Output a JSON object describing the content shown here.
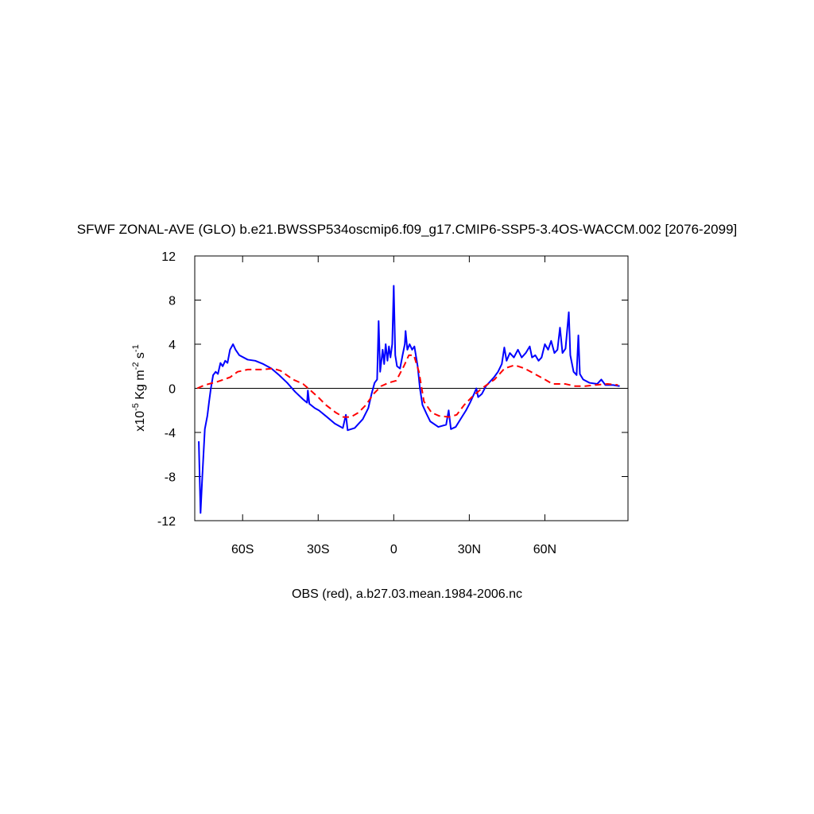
{
  "chart_data": {
    "type": "line",
    "title": "SFWF ZONAL-AVE (GLO) b.e21.BWSSP534oscmip6.f09_g17.CMIP6-SSP5-3.4OS-WACCM.002 [2076-2099]",
    "subtitle": "OBS (red), a.b27.03.mean.1984-2006.nc",
    "ylabel": [
      "x10",
      "-5",
      " Kg m",
      "-2",
      " s",
      "-1"
    ],
    "xlim": [
      -79,
      93
    ],
    "ylim": [
      -12,
      12
    ],
    "xticks": [
      {
        "value": -60,
        "label": "60S"
      },
      {
        "value": -30,
        "label": "30S"
      },
      0,
      {
        "value": 30,
        "label": "30N"
      },
      {
        "value": 60,
        "label": "60N"
      }
    ],
    "yticks": [
      12,
      8,
      4,
      0,
      -4,
      -8,
      -12
    ],
    "hline": 0,
    "series": [
      {
        "color": "#0000ff",
        "dash": false,
        "x": [
          -77.4,
          -76.7,
          -76,
          -75,
          -74,
          -73.3,
          -72.6,
          -71.7,
          -70.7,
          -69.8,
          -68.8,
          -67.9,
          -66.9,
          -66,
          -65,
          -63.8,
          -62.8,
          -61.3,
          -58,
          -55,
          -51.8,
          -48.6,
          -45.5,
          -42.3,
          -39.2,
          -36,
          -34.4,
          -34.1,
          -33.5,
          -31.3,
          -29.7,
          -26.5,
          -23.4,
          -20.2,
          -19,
          -18.3,
          -15.5,
          -12.3,
          -10.1,
          -8.8,
          -7.6,
          -6.6,
          -6,
          -5.4,
          -4.4,
          -3.8,
          -3.2,
          -2.5,
          -1.9,
          -1.3,
          -0.6,
          0,
          0.6,
          1.3,
          2.5,
          3.5,
          4.4,
          4.7,
          5.4,
          6.3,
          7.3,
          8.2,
          9.5,
          10.4,
          11.4,
          13,
          14.5,
          17.7,
          20.8,
          21.8,
          22.7,
          24.6,
          26.5,
          28.7,
          30.3,
          31.9,
          32.8,
          33.5,
          35,
          36.6,
          39.8,
          41.4,
          42.9,
          43.9,
          44.8,
          46.1,
          47.7,
          49.3,
          50.8,
          52.4,
          54,
          54.9,
          56.2,
          57.5,
          58.7,
          60,
          61.3,
          62.5,
          63.8,
          65,
          66,
          67,
          68.2,
          69.5,
          70.1,
          71.4,
          72.6,
          73.3,
          73.9,
          75.2,
          77.7,
          80.8,
          82.4,
          84,
          87.1,
          89.7
        ],
        "values": [
          -4.8,
          -11.3,
          -8,
          -3.7,
          -2.5,
          -1.2,
          0,
          1.2,
          1.5,
          1.3,
          2.3,
          2.0,
          2.5,
          2.3,
          3.5,
          4.0,
          3.5,
          3.0,
          2.6,
          2.5,
          2.2,
          1.8,
          1.2,
          0.5,
          -0.3,
          -1,
          -1.3,
          -0.2,
          -1.4,
          -1.8,
          -2.0,
          -2.6,
          -3.2,
          -3.6,
          -2.4,
          -3.8,
          -3.6,
          -2.8,
          -1.8,
          -0.5,
          0.5,
          0.8,
          6.1,
          1.5,
          3.5,
          2.2,
          4.0,
          2.5,
          3.8,
          2.8,
          4.0,
          9.3,
          3.0,
          2.0,
          1.8,
          3.0,
          4.0,
          5.2,
          3.5,
          4.0,
          3.5,
          3.8,
          2.0,
          0,
          -1.5,
          -2.3,
          -3.0,
          -3.5,
          -3.3,
          -2.0,
          -3.7,
          -3.5,
          -2.8,
          -2.0,
          -1.3,
          -0.5,
          0.0,
          -0.8,
          -0.5,
          0.2,
          1.0,
          1.5,
          2.2,
          3.7,
          2.5,
          3.2,
          2.8,
          3.5,
          2.8,
          3.2,
          3.8,
          2.8,
          3.0,
          2.5,
          2.8,
          4.0,
          3.5,
          4.3,
          3.2,
          3.5,
          5.5,
          3.2,
          3.6,
          6.9,
          3.0,
          1.5,
          1.2,
          4.8,
          1.3,
          0.8,
          0.5,
          0.4,
          0.8,
          0.3,
          0.3,
          0.2
        ]
      },
      {
        "color": "#ff0000",
        "dash": true,
        "x": [
          -78,
          -75,
          -70,
          -65,
          -62,
          -58,
          -52,
          -48,
          -45,
          -40,
          -36,
          -33,
          -30,
          -27,
          -23,
          -20,
          -17,
          -14,
          -11,
          -8,
          -5,
          -2,
          1,
          4,
          6,
          8,
          10,
          12,
          15,
          18,
          22,
          25,
          28,
          31,
          35,
          40,
          44,
          48,
          52,
          56,
          60,
          63,
          68,
          72,
          76,
          80,
          85,
          89
        ],
        "values": [
          0.0,
          0.3,
          0.6,
          1.0,
          1.5,
          1.7,
          1.7,
          1.8,
          1.6,
          0.8,
          0.4,
          -0.2,
          -0.8,
          -1.5,
          -2.2,
          -2.6,
          -2.6,
          -2.2,
          -1.5,
          -0.5,
          0.2,
          0.5,
          0.7,
          2.0,
          3.0,
          3.0,
          1.5,
          -1.2,
          -2.2,
          -2.5,
          -2.6,
          -2.4,
          -1.5,
          -0.8,
          0.0,
          0.8,
          1.8,
          2.1,
          1.8,
          1.3,
          0.8,
          0.4,
          0.4,
          0.2,
          0.2,
          0.3,
          0.4,
          0.3
        ]
      }
    ]
  }
}
